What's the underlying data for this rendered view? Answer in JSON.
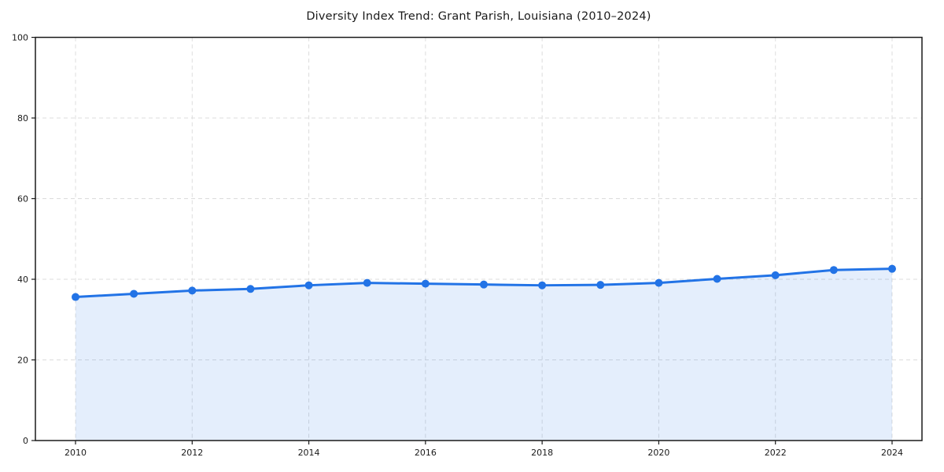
{
  "chart_data": {
    "type": "line",
    "title": "Diversity Index Trend: Grant Parish, Louisiana (2010–2024)",
    "x": [
      2010,
      2011,
      2012,
      2013,
      2014,
      2015,
      2016,
      2017,
      2018,
      2019,
      2020,
      2021,
      2022,
      2023,
      2024
    ],
    "series": [
      {
        "name": "Diversity Index",
        "values": [
          35.6,
          36.4,
          37.2,
          37.6,
          38.5,
          39.1,
          38.9,
          38.7,
          38.5,
          38.6,
          39.1,
          40.1,
          41.0,
          42.3,
          42.6
        ]
      }
    ],
    "xlabel": "",
    "ylabel": "",
    "ylim": [
      0,
      100
    ],
    "yticks": [
      0,
      20,
      40,
      60,
      80,
      100
    ],
    "xticks": [
      2010,
      2012,
      2014,
      2016,
      2018,
      2020,
      2022,
      2024
    ],
    "grid": true,
    "grid_style": "dashed",
    "legend": "none",
    "colors": {
      "line": "#2273e6",
      "marker": "#2273e6",
      "area_fill": "#2273e6",
      "area_fill_opacity": 0.12,
      "grid": "#dcdcdc",
      "axis": "#1a1a1a",
      "tick_text": "#1a1a1a",
      "background": "#ffffff"
    }
  }
}
